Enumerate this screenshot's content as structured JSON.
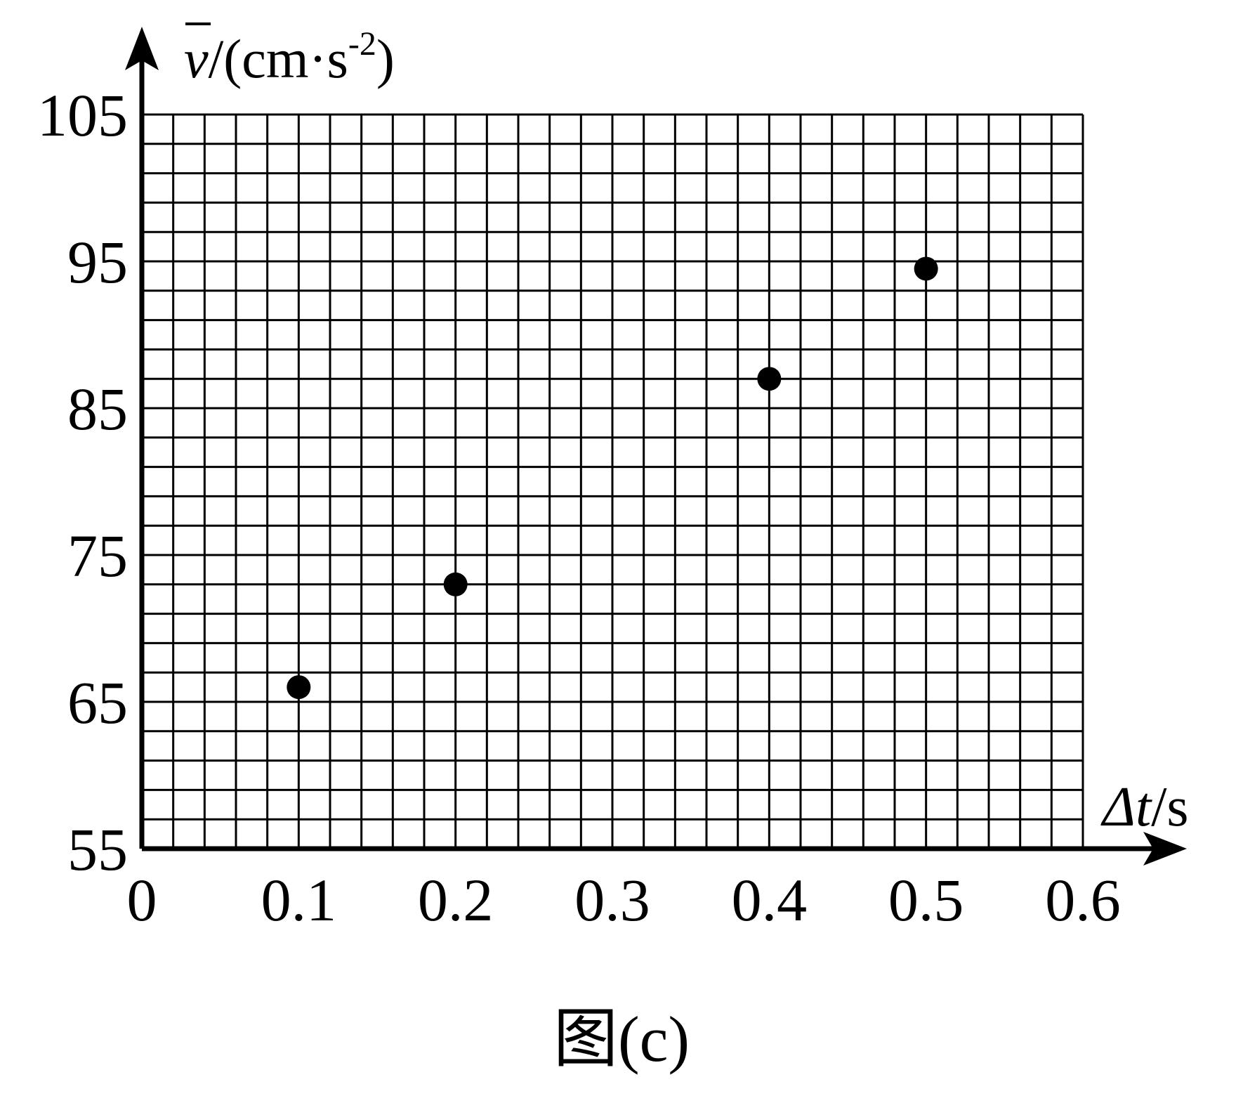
{
  "chart_data": {
    "type": "scatter",
    "title": "",
    "caption": "图(c)",
    "xlabel": {
      "symbol": "Δt",
      "unit": "/s"
    },
    "ylabel": {
      "symbol": "v",
      "unit_open": "/(cm·s",
      "unit_exp": "-2",
      "unit_close": ")"
    },
    "xlim": [
      0,
      0.6
    ],
    "ylim": [
      55,
      105
    ],
    "xticks": [
      "0",
      "0.1",
      "0.2",
      "0.3",
      "0.4",
      "0.5",
      "0.6"
    ],
    "yticks": [
      "55",
      "65",
      "75",
      "85",
      "95",
      "105"
    ],
    "grid": true,
    "series": [
      {
        "points": [
          {
            "x": 0.1,
            "y": 66.0
          },
          {
            "x": 0.2,
            "y": 73.0
          },
          {
            "x": 0.4,
            "y": 87.0
          },
          {
            "x": 0.5,
            "y": 94.5
          }
        ]
      }
    ],
    "colors": {
      "ink": "#000000",
      "background": "#ffffff"
    }
  }
}
